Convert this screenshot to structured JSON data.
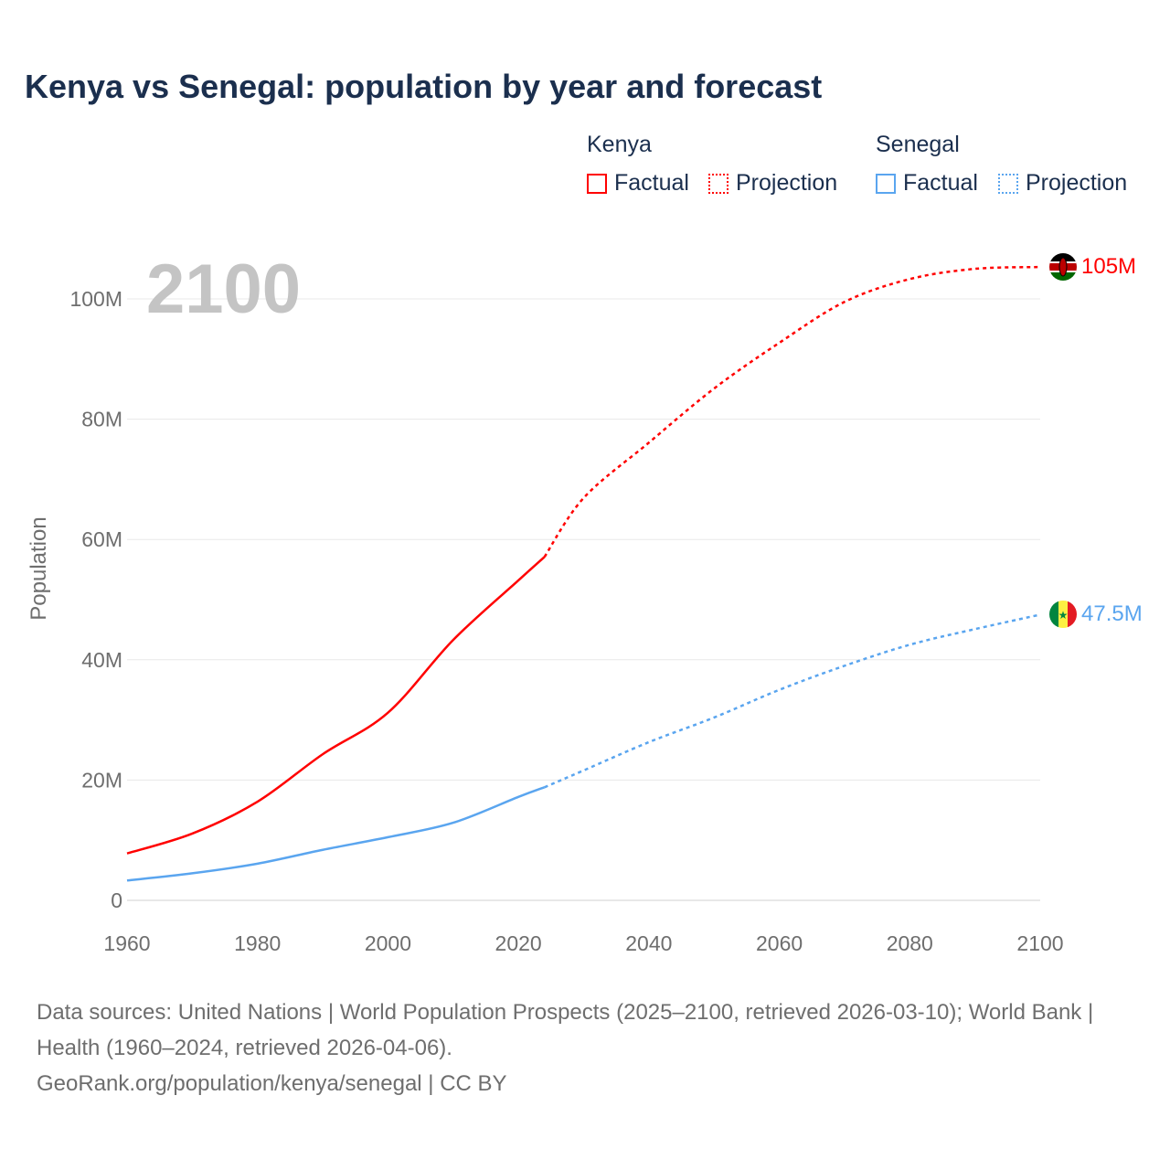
{
  "title": "Kenya vs Senegal: population by year and forecast",
  "legend": {
    "groups": [
      {
        "name": "Kenya",
        "color": "#ff0000",
        "factual": "Factual",
        "projection": "Projection"
      },
      {
        "name": "Senegal",
        "color": "#5aa5ef",
        "factual": "Factual",
        "projection": "Projection"
      }
    ]
  },
  "year_watermark": "2100",
  "footer": {
    "sources": "Data sources: United Nations | World Population Prospects (2025–2100, retrieved 2026-03-10); World Bank | Health (1960–2024, retrieved 2026-04-06).",
    "credit": "GeoRank.org/population/kenya/senegal | CC BY"
  },
  "chart_data": {
    "type": "line",
    "title": "Kenya vs Senegal: population by year and forecast",
    "xlabel": "",
    "ylabel": "Population",
    "xlim": [
      1960,
      2100
    ],
    "ylim": [
      0,
      110
    ],
    "x_ticks": [
      "1960",
      "1980",
      "2000",
      "2020",
      "2040",
      "2060",
      "2080",
      "2100"
    ],
    "y_ticks": [
      {
        "v": 0,
        "label": "0"
      },
      {
        "v": 20,
        "label": "20M"
      },
      {
        "v": 40,
        "label": "40M"
      },
      {
        "v": 60,
        "label": "60M"
      },
      {
        "v": 80,
        "label": "80M"
      },
      {
        "v": 100,
        "label": "100M"
      }
    ],
    "grid": true,
    "units": "millions",
    "factual_until": 2024,
    "series": [
      {
        "name": "Kenya",
        "color": "#ff0000",
        "end_label": "105M",
        "x": [
          1960,
          1970,
          1980,
          1990,
          2000,
          2010,
          2020,
          2024,
          2030,
          2040,
          2050,
          2060,
          2070,
          2080,
          2090,
          2100
        ],
        "values": [
          7.8,
          11.1,
          16.4,
          24.3,
          31.2,
          43.3,
          53.2,
          57.1,
          66.9,
          76.1,
          85.1,
          92.7,
          99.5,
          103.3,
          105.0,
          105.3
        ]
      },
      {
        "name": "Senegal",
        "color": "#5aa5ef",
        "end_label": "47.5M",
        "x": [
          1960,
          1970,
          1980,
          1990,
          2000,
          2010,
          2020,
          2024,
          2030,
          2040,
          2050,
          2060,
          2070,
          2080,
          2090,
          2100
        ],
        "values": [
          3.3,
          4.5,
          6.1,
          8.4,
          10.5,
          12.9,
          17.2,
          18.8,
          21.6,
          26.3,
          30.4,
          35.0,
          39.0,
          42.5,
          45.1,
          47.5
        ]
      }
    ]
  }
}
